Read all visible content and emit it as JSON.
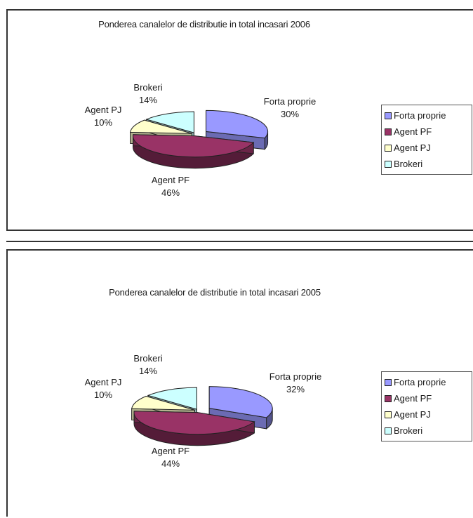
{
  "chart_data": [
    {
      "type": "pie",
      "title": "Ponderea canalelor de distributie in total incasari 2006",
      "categories": [
        "Forta proprie",
        "Agent PF",
        "Agent PJ",
        "Brokeri"
      ],
      "values": [
        30,
        46,
        10,
        14
      ],
      "labels": [
        {
          "name": "Forta proprie",
          "pct": "30%"
        },
        {
          "name": "Agent PF",
          "pct": "46%"
        },
        {
          "name": "Agent PJ",
          "pct": "10%"
        },
        {
          "name": "Brokeri",
          "pct": "14%"
        }
      ],
      "legend": [
        "Forta proprie",
        "Agent PF",
        "Agent PJ",
        "Brokeri"
      ],
      "legend_position": "right",
      "style": "3d-exploded"
    },
    {
      "type": "pie",
      "title": "Ponderea canalelor de distributie in total incasari 2005",
      "categories": [
        "Forta proprie",
        "Agent PF",
        "Agent PJ",
        "Brokeri"
      ],
      "values": [
        32,
        44,
        10,
        14
      ],
      "labels": [
        {
          "name": "Forta proprie",
          "pct": "32%"
        },
        {
          "name": "Agent PF",
          "pct": "44%"
        },
        {
          "name": "Agent PJ",
          "pct": "10%"
        },
        {
          "name": "Brokeri",
          "pct": "14%"
        }
      ],
      "legend": [
        "Forta proprie",
        "Agent PF",
        "Agent PJ",
        "Brokeri"
      ],
      "legend_position": "right",
      "style": "3d-exploded"
    }
  ],
  "colors": {
    "Forta proprie": "#9999ff",
    "Agent PF": "#993366",
    "Agent PJ": "#ffffcc",
    "Brokeri": "#ccffff"
  }
}
